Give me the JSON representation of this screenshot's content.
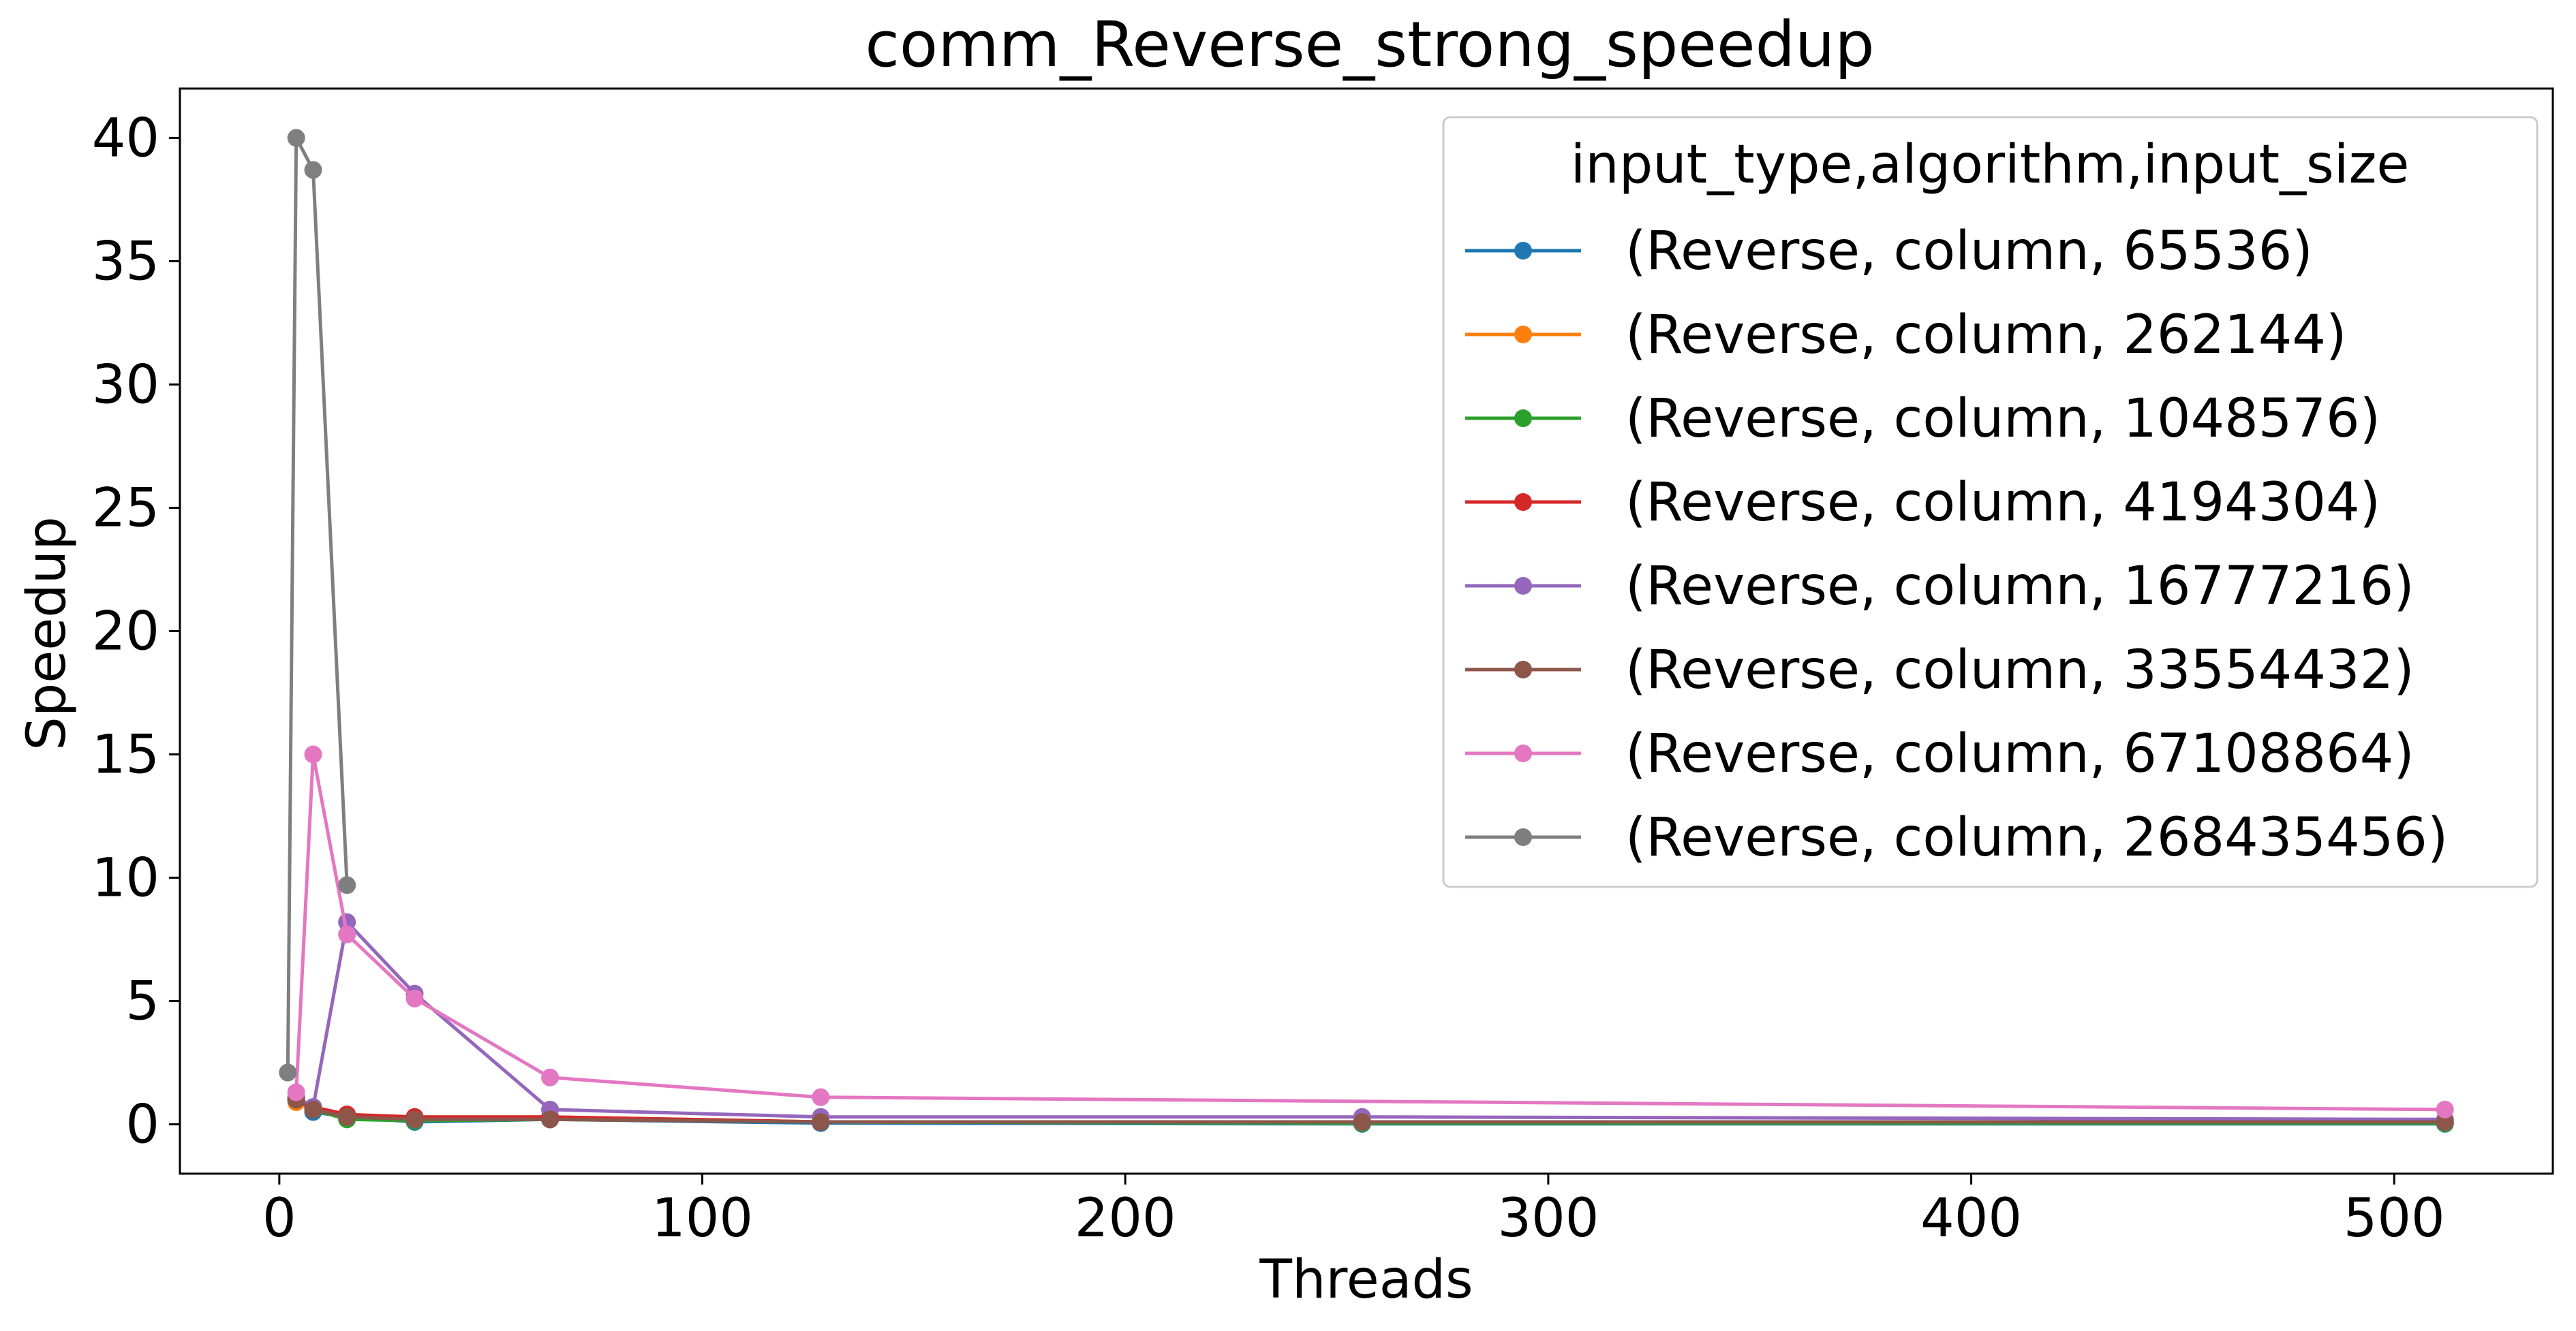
{
  "chart_data": {
    "type": "line",
    "title": "comm_Reverse_strong_speedup",
    "xlabel": "Threads",
    "ylabel": "Speedup",
    "xlim": [
      -23.5,
      537.5
    ],
    "ylim": [
      -2.0,
      42.0
    ],
    "xticks": [
      0,
      100,
      200,
      300,
      400,
      500
    ],
    "yticks": [
      0,
      5,
      10,
      15,
      20,
      25,
      30,
      35,
      40
    ],
    "grid": false,
    "legend_title": "input_type,algorithm,input_size",
    "legend_position": "upper right",
    "series": [
      {
        "name": "(Reverse, column, 65536)",
        "color": "#1f77b4",
        "x": [
          4,
          8,
          16,
          32,
          64,
          128,
          256,
          512
        ],
        "y": [
          1.0,
          0.5,
          0.3,
          0.1,
          0.2,
          0.05,
          0.02,
          0.02
        ]
      },
      {
        "name": "(Reverse, column, 262144)",
        "color": "#ff7f0e",
        "x": [
          4,
          8,
          16,
          32,
          64,
          128,
          256,
          512
        ],
        "y": [
          0.9,
          0.6,
          0.4,
          0.25,
          0.3,
          0.1,
          0.05,
          0.05
        ]
      },
      {
        "name": "(Reverse, column, 1048576)",
        "color": "#2ca02c",
        "x": [
          4,
          8,
          16,
          32,
          64,
          128,
          256,
          512
        ],
        "y": [
          1.0,
          0.6,
          0.2,
          0.15,
          0.2,
          0.1,
          0.05,
          0.05
        ]
      },
      {
        "name": "(Reverse, column, 4194304)",
        "color": "#d62728",
        "x": [
          4,
          8,
          16,
          32,
          64,
          128,
          256,
          512
        ],
        "y": [
          1.1,
          0.7,
          0.4,
          0.3,
          0.3,
          0.1,
          0.1,
          0.1
        ]
      },
      {
        "name": "(Reverse, column, 16777216)",
        "color": "#9467bd",
        "x": [
          4,
          8,
          16,
          32,
          64,
          128,
          256,
          512
        ],
        "y": [
          1.1,
          0.7,
          8.2,
          5.3,
          0.6,
          0.3,
          0.3,
          0.2
        ]
      },
      {
        "name": "(Reverse, column, 33554432)",
        "color": "#8c564b",
        "x": [
          4,
          8,
          16,
          32,
          64,
          128,
          256,
          512
        ],
        "y": [
          1.0,
          0.6,
          0.3,
          0.2,
          0.2,
          0.1,
          0.1,
          0.1
        ]
      },
      {
        "name": "(Reverse, column, 67108864)",
        "color": "#e377c2",
        "x": [
          4,
          8,
          16,
          32,
          64,
          128,
          512
        ],
        "y": [
          1.3,
          15.0,
          7.7,
          5.1,
          1.9,
          1.1,
          0.6
        ]
      },
      {
        "name": "(Reverse, column, 268435456)",
        "color": "#7f7f7f",
        "x": [
          2,
          4,
          8,
          16
        ],
        "y": [
          2.1,
          40.0,
          38.7,
          9.7
        ]
      }
    ]
  }
}
